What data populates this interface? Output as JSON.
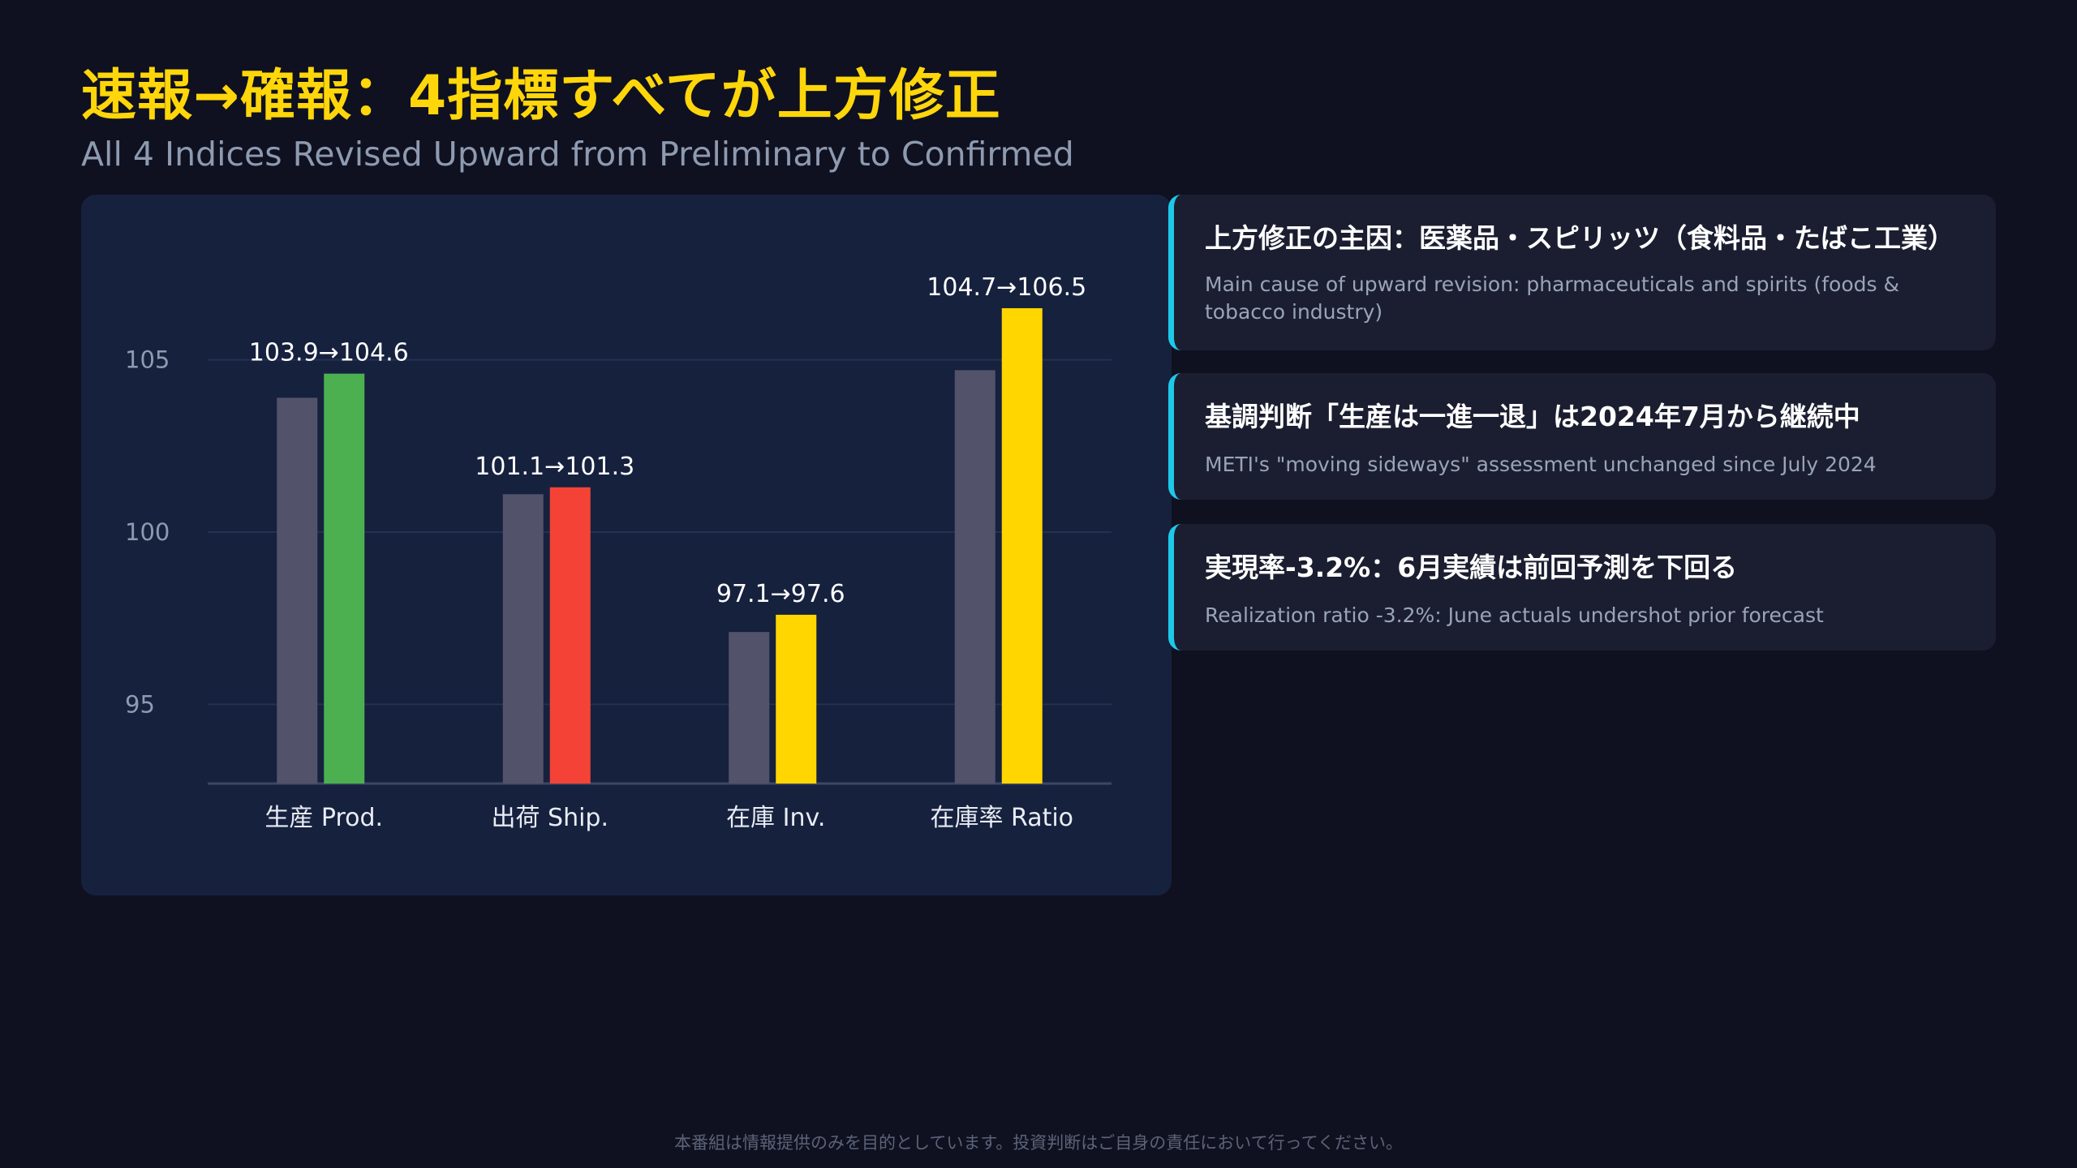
{
  "page": {
    "title": "速報→確報：4指標すべてが上方修正",
    "subtitle": "All 4 Indices Revised Upward from Preliminary to Confirmed",
    "disclaimer": "本番組は情報提供のみを目的としています。投資判断はご自身の責任において行ってください。"
  },
  "chart_data": {
    "type": "bar",
    "categories": [
      "生産 Prod.",
      "出荷 Ship.",
      "在庫 Inv.",
      "在庫率 Ratio"
    ],
    "series": [
      {
        "values": [
          103.9,
          101.1,
          97.1,
          104.7
        ]
      },
      {
        "values": [
          104.6,
          101.3,
          97.6,
          106.5
        ]
      }
    ],
    "data_labels": [
      "103.9→104.6",
      "101.1→101.3",
      "97.1→97.6",
      "104.7→106.5"
    ],
    "yticks": [
      95,
      100,
      105
    ],
    "ylim": [
      92.7,
      107.3
    ],
    "grid": true,
    "colors": {
      "preliminary": "#52526a",
      "confirmed": [
        "#4cb050",
        "#f44336",
        "#ffd600",
        "#ffd600"
      ],
      "grid": "#233152",
      "axis": "#3d4664",
      "tick_label": "#8e9ab0",
      "category_label": "#e8ecf4",
      "data_label": "#ffffff"
    }
  },
  "cards": [
    {
      "title": "上方修正の主因：医薬品・スピリッツ（食料品・たばこ工業）",
      "sub": "Main cause of upward revision: pharmaceuticals and spirits (foods & tobacco industry)"
    },
    {
      "title": "基調判断「生産は一進一退」は2024年7月から継続中",
      "sub": "METI's \"moving sideways\" assessment unchanged since July 2024"
    },
    {
      "title": "実現率-3.2%：6月実績は前回予測を下回る",
      "sub": "Realization ratio -3.2%: June actuals undershot prior forecast"
    }
  ],
  "colors": {
    "background": "#0f1120",
    "title": "#ffd60a",
    "panel": "#16213e",
    "card": "#1b1e30",
    "card_accent": "#1fc8e8"
  }
}
